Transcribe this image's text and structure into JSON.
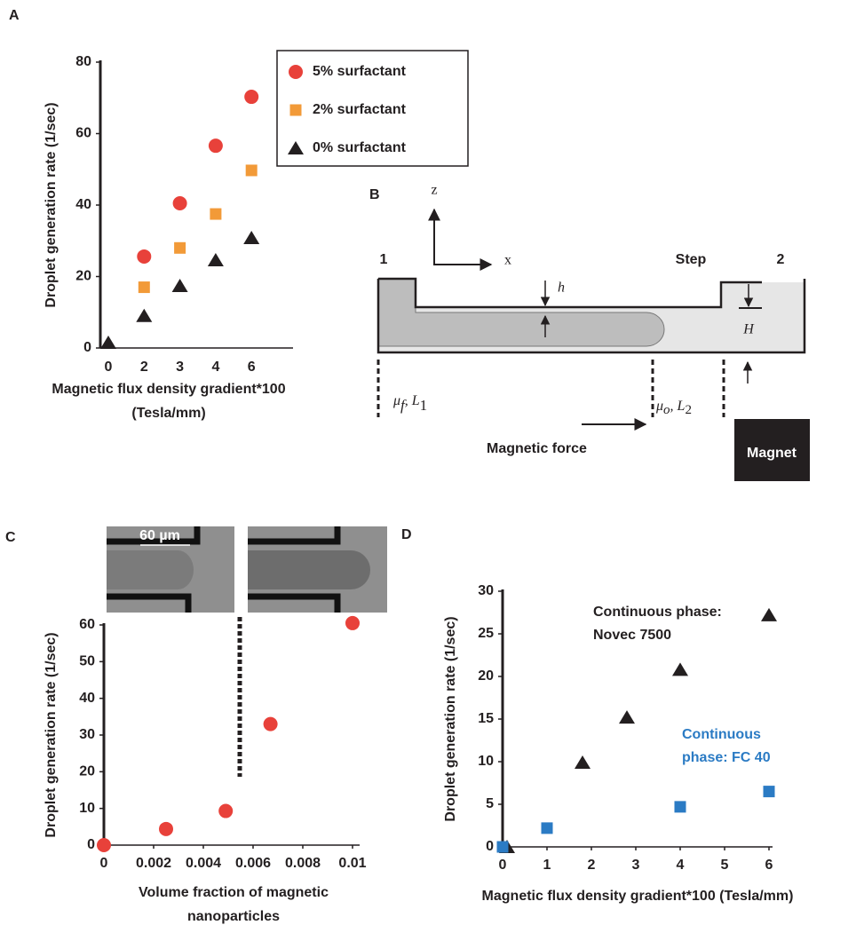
{
  "panel_labels": [
    "A",
    "B",
    "C",
    "D"
  ],
  "chart_data": [
    {
      "type": "scatter",
      "y_label": "Droplet generation rate (1/sec)",
      "x_label": [
        "Magnetic flux density gradient*100",
        "(Tesla/mm)"
      ],
      "categories": [
        "0",
        "2",
        "3",
        "4",
        "6"
      ],
      "ylim": [
        0,
        80
      ],
      "yticks": [
        0,
        20,
        40,
        60,
        80
      ],
      "legend": "upper right",
      "series": [
        {
          "name": "5% surfactant",
          "color": "#e8413a",
          "marker": "circle",
          "values": [
            null,
            25.6,
            40.5,
            56.6,
            70.3
          ]
        },
        {
          "name": "2% surfactant",
          "color": "#f29a38",
          "marker": "square",
          "values": [
            null,
            17,
            28,
            37.5,
            49.7
          ]
        },
        {
          "name": "0% surfactant",
          "color": "#231f20",
          "marker": "triangle",
          "values": [
            1.5,
            9,
            17.4,
            24.6,
            30.8
          ]
        }
      ]
    },
    {
      "type": "scatter",
      "y_label": "Droplet generation rate (1/sec)",
      "x_label": [
        "Volume fraction of magnetic",
        "nanoparticles"
      ],
      "inset_label": "60 µm",
      "x": [
        0,
        0.0025,
        0.0049,
        0.0067,
        0.01
      ],
      "values": [
        0,
        4.4,
        9.3,
        33,
        60.5
      ],
      "color": "#e8413a",
      "marker": "circle",
      "xlim": [
        0,
        0.01
      ],
      "xticks": [
        0,
        0.002,
        0.004,
        0.006,
        0.008,
        0.01
      ],
      "ylim": [
        0,
        60
      ],
      "yticks": [
        0,
        10,
        20,
        30,
        40,
        50,
        60
      ]
    },
    {
      "type": "scatter",
      "y_label": "Droplet generation rate (1/sec)",
      "x_label": [
        "Magnetic flux density gradient*100 (Tesla/mm)"
      ],
      "xlim": [
        0,
        6
      ],
      "xticks": [
        0,
        1,
        2,
        3,
        4,
        5,
        6
      ],
      "ylim": [
        0,
        30
      ],
      "yticks": [
        0,
        5,
        10,
        15,
        20,
        25,
        30
      ],
      "annotations": [
        {
          "lines": [
            "Continuous phase:",
            "Novec 7500"
          ],
          "color": "#231f20"
        },
        {
          "lines": [
            "Continuous",
            "phase: FC 40"
          ],
          "color": "#2b7bc4"
        }
      ],
      "series": [
        {
          "color": "#231f20",
          "marker": "triangle",
          "x": [
            0.1,
            1.8,
            2.8,
            4,
            6
          ],
          "values": [
            0,
            9.9,
            15.2,
            20.8,
            27.2
          ]
        },
        {
          "color": "#2b7bc4",
          "marker": "square",
          "x": [
            0,
            1,
            4,
            6
          ],
          "values": [
            0,
            2.2,
            4.7,
            6.5
          ]
        }
      ]
    }
  ],
  "diagram": {
    "z_axis": "z",
    "x_axis": "x",
    "inlet": "1",
    "step": "Step",
    "outlet": "2",
    "h": "h",
    "H": "H",
    "region_1": {
      "symbol": "μ",
      "symbol_sub": "f",
      "length": ", L",
      "length_sub": "1"
    },
    "region_2": {
      "symbol": "μ",
      "symbol_sub": "o",
      "length": ", L",
      "length_sub": "2"
    },
    "force": "Magnetic force",
    "magnet": "Magnet"
  }
}
